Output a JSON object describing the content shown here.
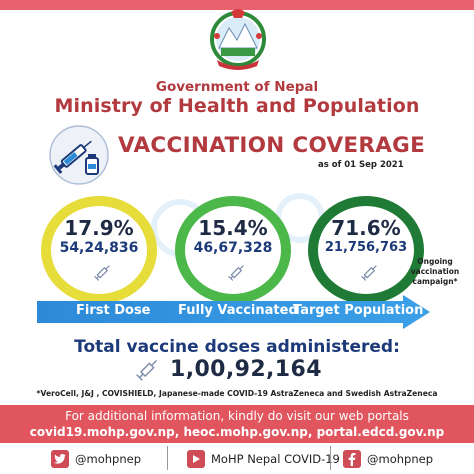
{
  "header": {
    "government": "Government of Nepal",
    "ministry": "Ministry of Health and Population"
  },
  "title": {
    "main": "VACCINATION COVERAGE",
    "as_of": "as of 01 Sep 2021"
  },
  "stats": [
    {
      "percent": "17.9%",
      "count": "54,24,836",
      "label": "First Dose",
      "ring_color": "#e6dc3a"
    },
    {
      "percent": "15.4%",
      "count": "46,67,328",
      "label": "Fully Vaccinated",
      "ring_color": "#4cb84a"
    },
    {
      "percent": "71.6%",
      "count": "21,756,763",
      "label": "Target Population",
      "ring_color": "#1f7a35"
    }
  ],
  "ongoing_note": "Ongoing vaccination campaign*",
  "total": {
    "label": "Total vaccine doses administered:",
    "value": "1,00,92,164"
  },
  "footnote": "*VeroCell, J&J , COVISHIELD, Japanese-made COVID-19 AstraZeneca and Swedish AstraZeneca",
  "info": {
    "line1": "For additional information, kindly do visit our web portals",
    "line2": "covid19.mohp.gov.np, heoc.mohp.gov.np, portal.edcd.gov.np"
  },
  "social": [
    {
      "icon": "twitter-icon",
      "handle": "@mohpnep"
    },
    {
      "icon": "youtube-icon",
      "handle": "MoHP Nepal COVID-19"
    },
    {
      "icon": "facebook-icon",
      "handle": "@mohpnep"
    }
  ],
  "colors": {
    "accent_red": "#b23a3f",
    "banner_red": "#e0555e",
    "navy": "#1c3a7a",
    "arrow_blue": "#2d8ad8"
  }
}
